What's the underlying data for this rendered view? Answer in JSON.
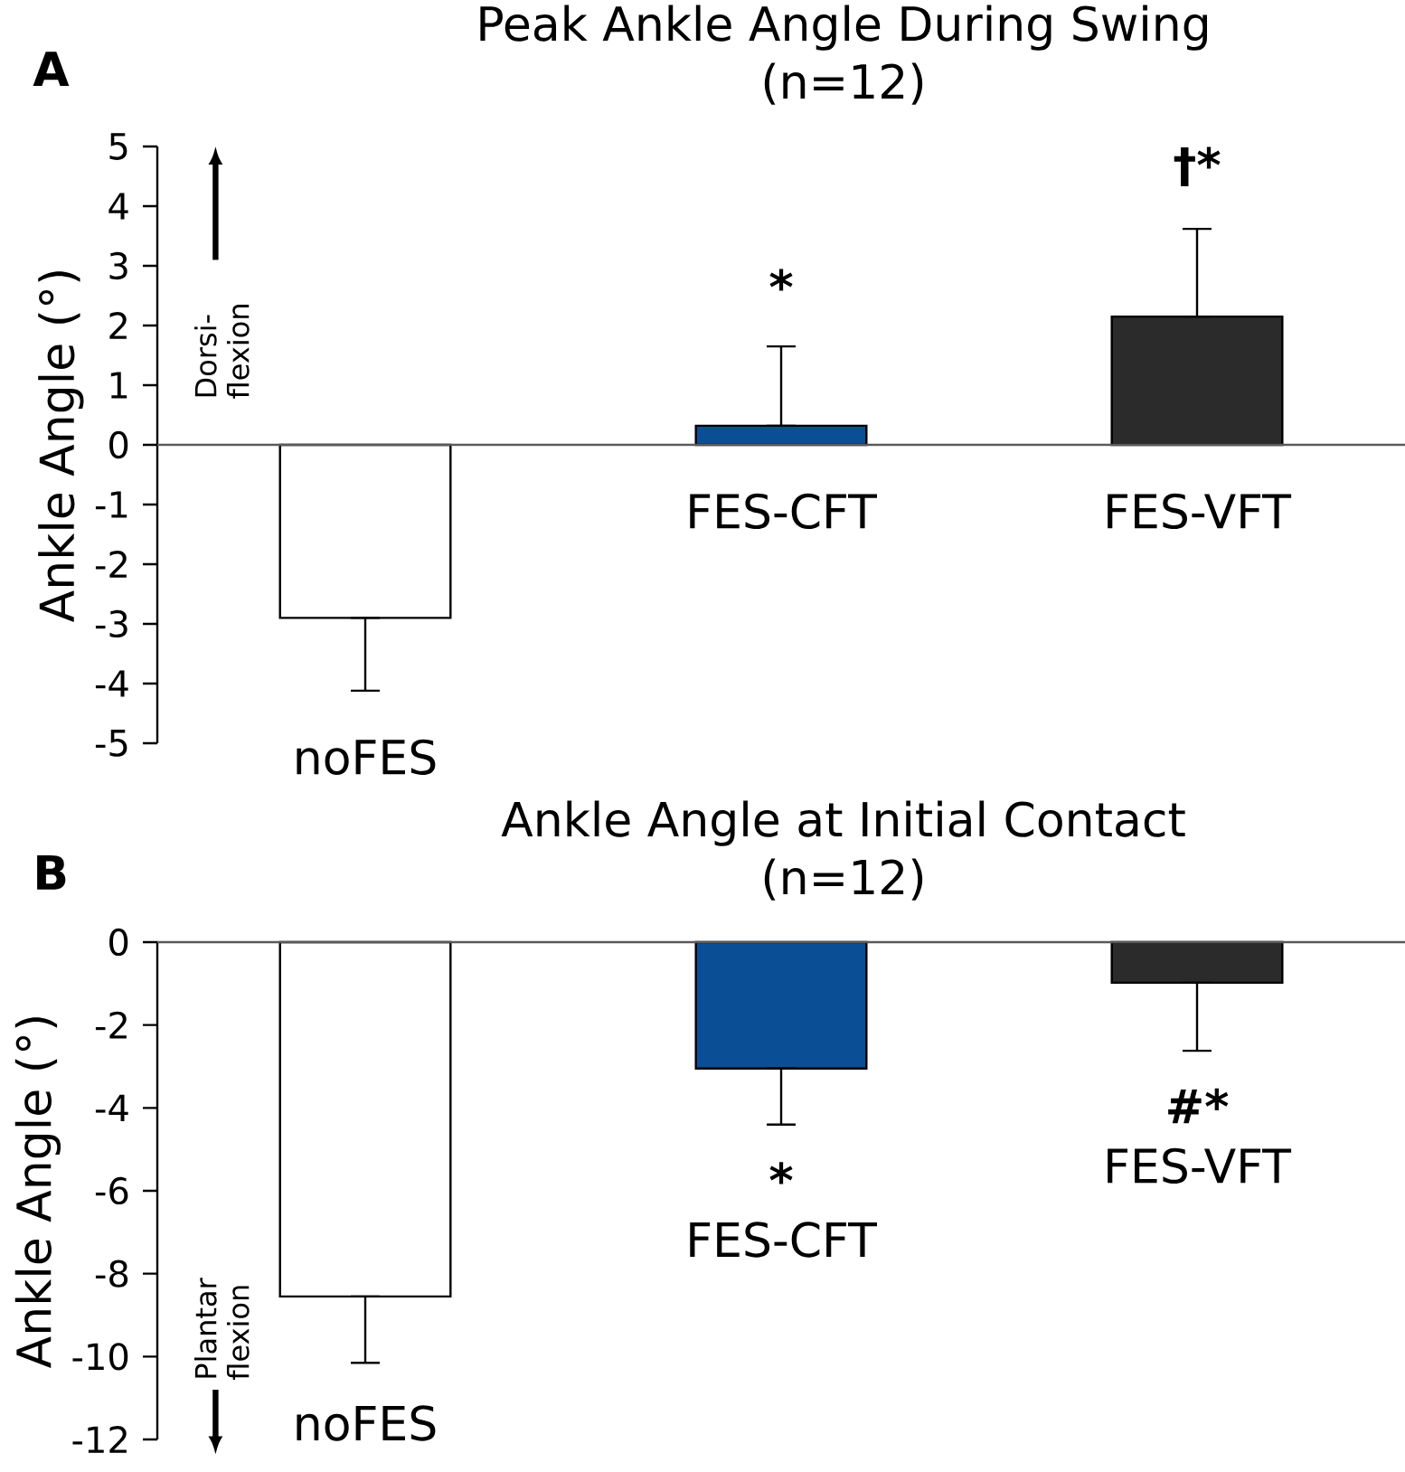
{
  "chart_data": [
    {
      "type": "bar",
      "title": "Peak Ankle Angle During Swing",
      "subtitle": "(n=12)",
      "ylabel": "Ankle Angle (°)",
      "categories": [
        "noFES",
        "FES-CFT",
        "FES-VFT"
      ],
      "values": [
        -2.9,
        0.32,
        2.15
      ],
      "colors": [
        "#ffffff",
        "#0a4f96",
        "#2b2b2b"
      ],
      "errors": [
        [
          -4.12,
          -2.9
        ],
        [
          0.32,
          1.65
        ],
        [
          2.15,
          3.62
        ]
      ],
      "ylim": [
        -5,
        5
      ],
      "yticks": [
        -5,
        -4,
        -3,
        -2,
        -1,
        0,
        1,
        2,
        3,
        4,
        5
      ],
      "annotations": [
        "A",
        "Dorsi- flexion",
        "*",
        "†*"
      ]
    },
    {
      "type": "bar",
      "title": "Ankle Angle at Initial Contact",
      "subtitle": "(n=12)",
      "ylabel": "Ankle Angle (°)",
      "categories": [
        "noFES",
        "FES-CFT",
        "FES-VFT"
      ],
      "values": [
        -8.55,
        -3.05,
        -0.98
      ],
      "colors": [
        "#ffffff",
        "#0a4f96",
        "#2b2b2b"
      ],
      "errors": [
        [
          -10.15,
          -8.55
        ],
        [
          -4.4,
          -3.05
        ],
        [
          -2.62,
          -0.98
        ]
      ],
      "ylim": [
        -12,
        0
      ],
      "yticks": [
        -12,
        -10,
        -8,
        -6,
        -4,
        -2,
        0
      ],
      "annotations": [
        "B",
        "Plantar flexion",
        "*",
        "#*"
      ]
    }
  ]
}
